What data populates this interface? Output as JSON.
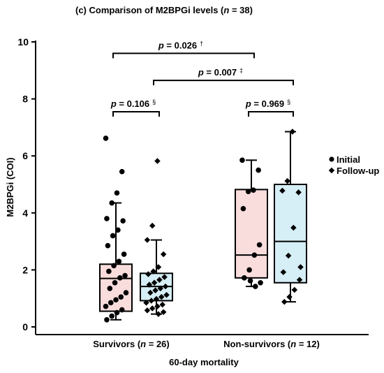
{
  "chart_data": {
    "type": "box",
    "title": "(c) Comparison of M2BPGi levels (n = 38)",
    "title_parts": {
      "prefix": "(c) Comparison of M2BPGi levels (",
      "n": "n",
      "suffix": " = 38)"
    },
    "xlabel": "60-day mortality",
    "ylabel": "M2BPGi (COI)",
    "ylim": [
      0,
      10
    ],
    "yticks": [
      "0",
      "2",
      "4",
      "6",
      "8",
      "10"
    ],
    "groups": [
      {
        "label": "Survivors (n = 26)",
        "label_parts": {
          "prefix": "Survivors (",
          "n": "n",
          "suffix": " = 26)"
        }
      },
      {
        "label": "Non-survivors (n = 12)",
        "label_parts": {
          "prefix": "Non-survivors (",
          "n": "n",
          "suffix": " = 12)"
        }
      }
    ],
    "legend": {
      "position": "right",
      "entries": [
        {
          "name": "Initial",
          "marker": "circle"
        },
        {
          "name": "Follow-up",
          "marker": "diamond"
        }
      ]
    },
    "boxes": [
      {
        "group": 0,
        "series": "Initial",
        "color": "#f9dcdc",
        "whisker_low": 0.25,
        "q1": 0.55,
        "median": 1.7,
        "q3": 2.2,
        "whisker_high": 4.35,
        "points": [
          6.62,
          5.45,
          4.7,
          4.35,
          3.8,
          3.72,
          3.4,
          3.2,
          2.85,
          2.55,
          2.3,
          2.15,
          1.95,
          1.8,
          1.72,
          1.55,
          1.35,
          1.2,
          1.05,
          0.95,
          0.85,
          0.72,
          0.6,
          0.5,
          0.38,
          0.25
        ]
      },
      {
        "group": 0,
        "series": "Follow-up",
        "color": "#d6eef5",
        "whisker_low": 0.45,
        "q1": 0.92,
        "median": 1.42,
        "q3": 1.88,
        "whisker_high": 3.05,
        "points": [
          5.82,
          3.55,
          3.05,
          2.55,
          2.1,
          1.95,
          1.85,
          1.75,
          1.65,
          1.55,
          1.48,
          1.42,
          1.35,
          1.28,
          1.2,
          1.12,
          1.05,
          0.98,
          0.92,
          0.85,
          0.78,
          0.72,
          0.65,
          0.58,
          0.52,
          0.45
        ]
      },
      {
        "group": 1,
        "series": "Initial",
        "color": "#f9dcdc",
        "whisker_low": 1.42,
        "q1": 1.72,
        "median": 2.52,
        "q3": 4.82,
        "whisker_high": 5.85,
        "points": [
          5.85,
          5.5,
          4.8,
          4.75,
          4.15,
          2.88,
          2.52,
          2.0,
          1.72,
          1.55,
          1.42,
          1.62
        ]
      },
      {
        "group": 1,
        "series": "Follow-up",
        "color": "#d6eef5",
        "whisker_low": 0.88,
        "q1": 1.55,
        "median": 3.0,
        "q3": 5.0,
        "whisker_high": 6.85,
        "points": [
          6.85,
          5.12,
          4.78,
          4.72,
          3.48,
          2.5,
          1.92,
          1.65,
          1.3,
          1.05,
          0.88,
          2.1
        ]
      }
    ],
    "annotations": [
      {
        "text_p": "p",
        "text_rest": " = 0.026",
        "mark": "†",
        "from": "group0-initial",
        "to": "group1-initial",
        "level": 9.6
      },
      {
        "text_p": "p",
        "text_rest": " = 0.007",
        "mark": "‡",
        "from": "group0-follow-up",
        "to": "group1-follow-up",
        "level": 8.65
      },
      {
        "text_p": "p",
        "text_rest": " = 0.106",
        "mark": "§",
        "from": "group0-initial",
        "to": "group0-follow-up",
        "level": 7.55
      },
      {
        "text_p": "p",
        "text_rest": " = 0.969",
        "mark": "§",
        "from": "group1-initial",
        "to": "group1-follow-up",
        "level": 7.55
      }
    ]
  }
}
